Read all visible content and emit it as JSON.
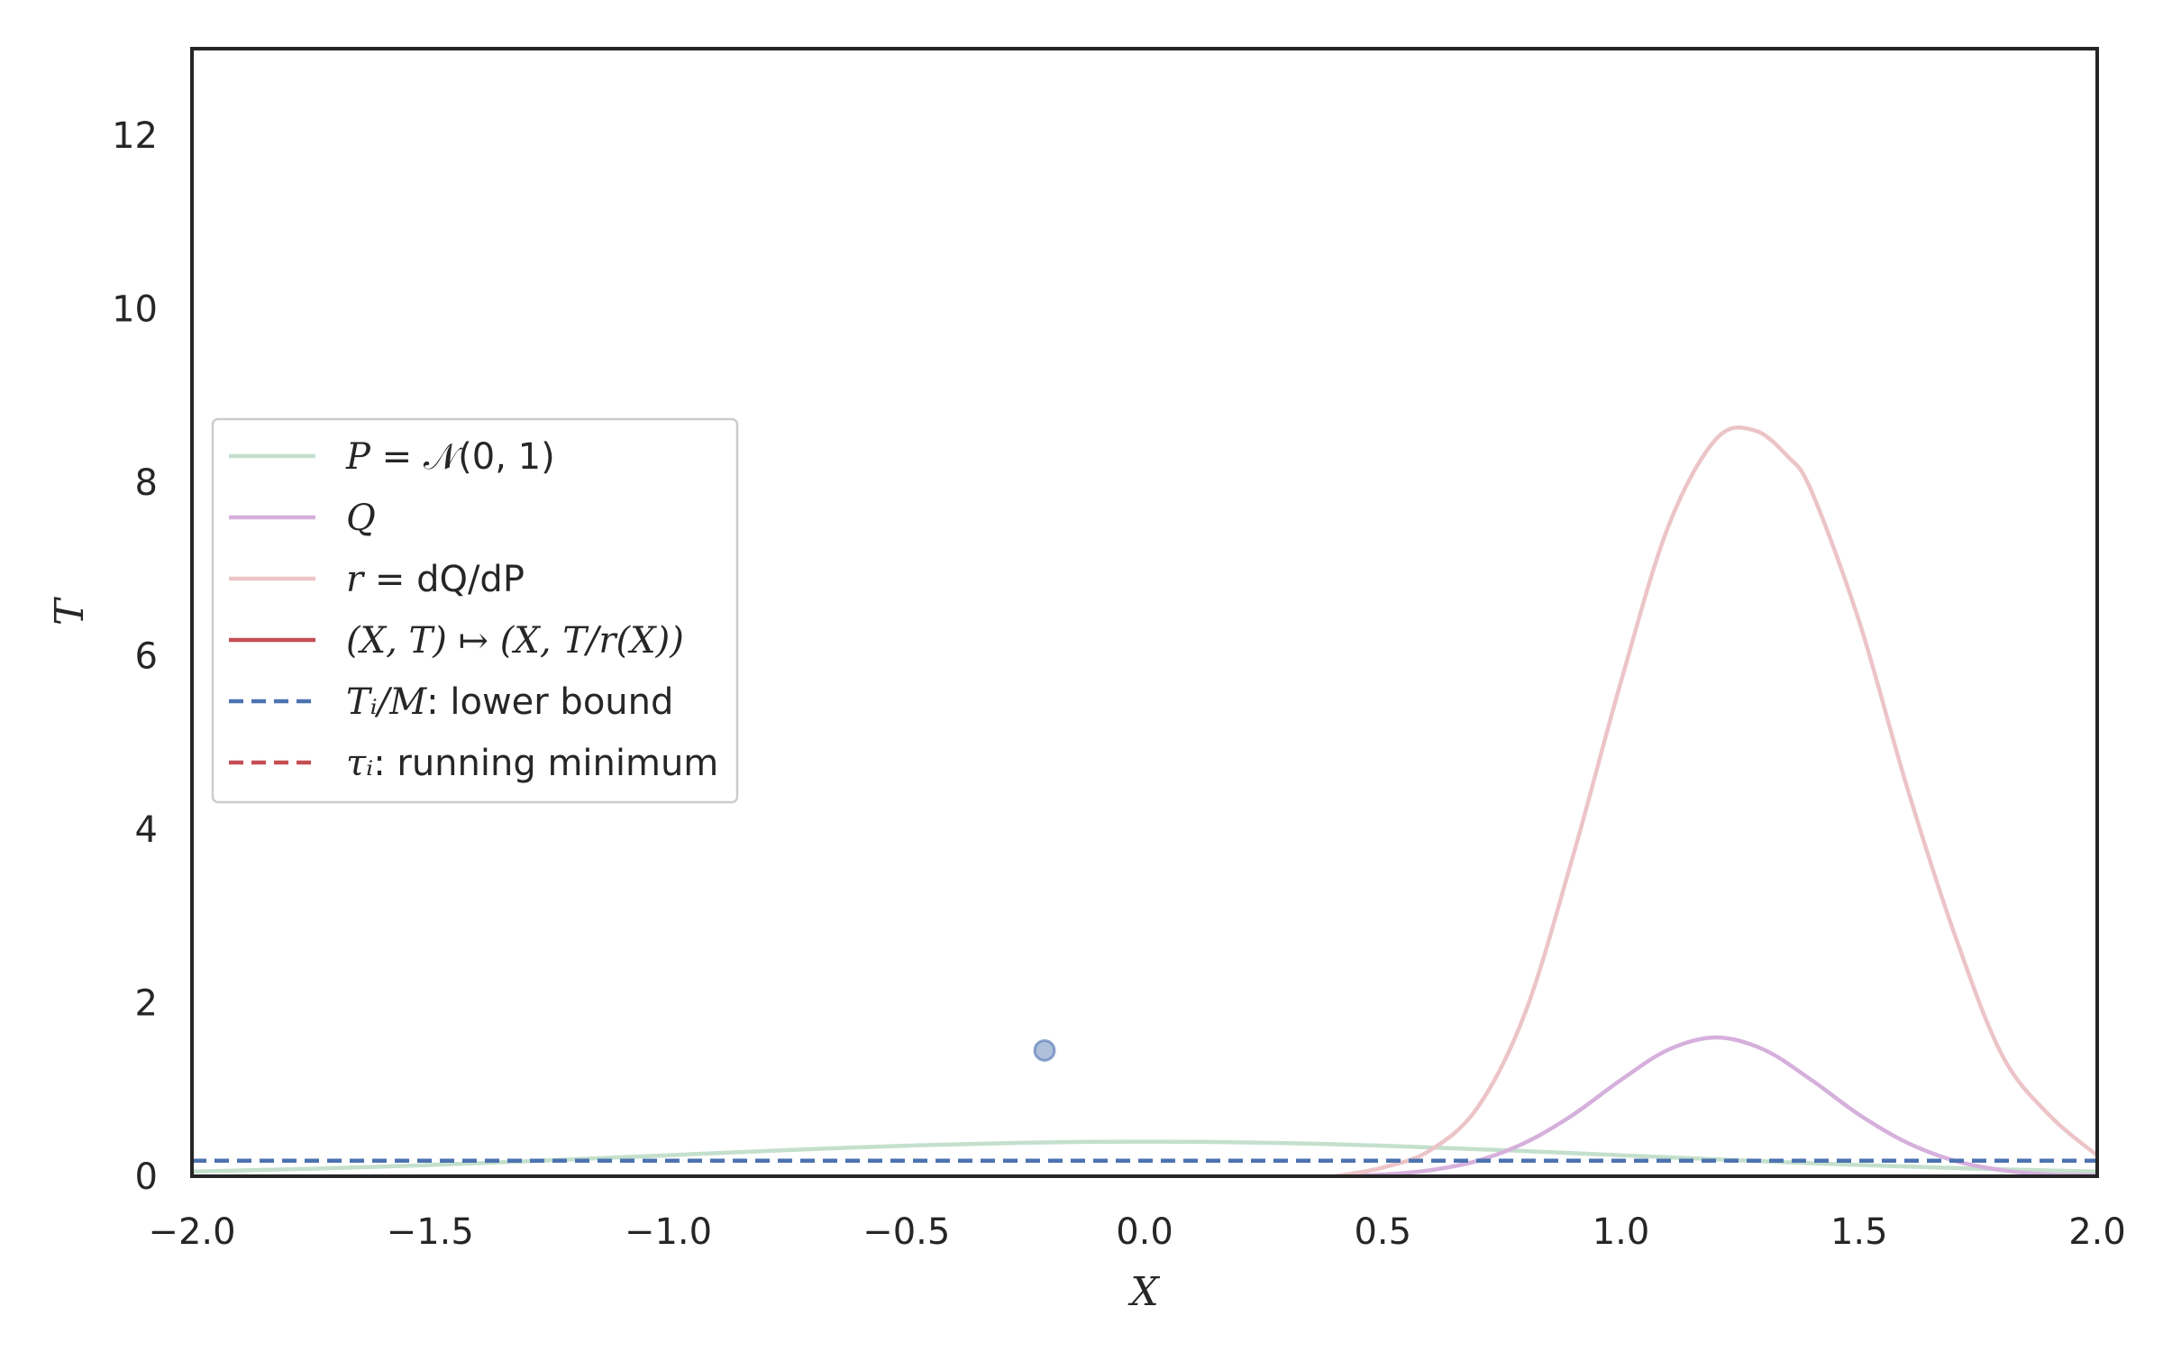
{
  "chart_data": {
    "type": "line",
    "xlabel": "X",
    "ylabel": "T",
    "xlim": [
      -2.0,
      2.0
    ],
    "ylim": [
      0,
      13
    ],
    "x_ticks": [
      -2.0,
      -1.5,
      -1.0,
      -0.5,
      0.0,
      0.5,
      1.0,
      1.5,
      2.0
    ],
    "x_tick_labels": [
      "−2.0",
      "−1.5",
      "−1.0",
      "−0.5",
      "0.0",
      "0.5",
      "1.0",
      "1.5",
      "2.0"
    ],
    "y_ticks": [
      0,
      2,
      4,
      6,
      8,
      10,
      12
    ],
    "y_tick_labels": [
      "0",
      "2",
      "4",
      "6",
      "8",
      "10",
      "12"
    ],
    "grid": false,
    "legend_position": "center-left",
    "series": [
      {
        "name": "P = 𝒩(0, 1)",
        "style": "solid",
        "color": "#c4e0cc",
        "x": [
          -2.0,
          -1.75,
          -1.5,
          -1.25,
          -1.0,
          -0.75,
          -0.5,
          -0.25,
          0.0,
          0.25,
          0.5,
          0.75,
          1.0,
          1.25,
          1.5,
          1.75,
          2.0
        ],
        "y": [
          0.054,
          0.086,
          0.13,
          0.183,
          0.242,
          0.301,
          0.352,
          0.387,
          0.399,
          0.387,
          0.352,
          0.301,
          0.242,
          0.183,
          0.13,
          0.086,
          0.054
        ]
      },
      {
        "name": "Q",
        "style": "solid",
        "color": "#d6b0dc",
        "x": [
          0.4,
          0.5,
          0.6,
          0.7,
          0.8,
          0.9,
          1.0,
          1.1,
          1.2,
          1.3,
          1.4,
          1.5,
          1.6,
          1.7,
          1.8,
          1.9,
          2.0
        ],
        "y": [
          0.0,
          0.02,
          0.07,
          0.18,
          0.39,
          0.71,
          1.11,
          1.46,
          1.6,
          1.46,
          1.11,
          0.71,
          0.39,
          0.18,
          0.07,
          0.02,
          0.01
        ]
      },
      {
        "name": "r = dQ/dP",
        "style": "solid",
        "color": "#ecc4c8",
        "x": [
          0.4,
          0.5,
          0.6,
          0.7,
          0.8,
          0.9,
          1.0,
          1.1,
          1.2,
          1.28,
          1.35,
          1.4,
          1.5,
          1.6,
          1.7,
          1.8,
          1.9,
          2.0
        ],
        "y": [
          0.0,
          0.1,
          0.3,
          0.8,
          1.9,
          3.7,
          5.7,
          7.5,
          8.5,
          8.6,
          8.3,
          7.9,
          6.4,
          4.5,
          2.8,
          1.4,
          0.7,
          0.24
        ]
      },
      {
        "name": "(X, T) ↦ (X, T/r(X))",
        "style": "solid",
        "color": "#c44e52",
        "x": [],
        "y": []
      },
      {
        "name": "Tᵢ/M: lower bound",
        "style": "dashed",
        "color": "#4c72b0",
        "x": [
          -2.0,
          2.0
        ],
        "y": [
          0.18,
          0.18
        ]
      },
      {
        "name": "τᵢ: running minimum",
        "style": "dashed",
        "color": "#c44e52",
        "x": [],
        "y": []
      }
    ],
    "points": [
      {
        "x": -0.21,
        "y": 1.45,
        "color": "#4c72b0"
      }
    ]
  },
  "legend": {
    "items": [
      {
        "math": "P",
        "text": " = 𝒩(0, 1)"
      },
      {
        "math": "Q",
        "text": ""
      },
      {
        "math": "r",
        "text": " = dQ/dP"
      },
      {
        "math": "(X, T) ↦ (X, T/r(X))",
        "text": ""
      },
      {
        "math": "Tᵢ/M",
        "text": ": lower bound"
      },
      {
        "math": "τᵢ",
        "text": ": running minimum"
      }
    ]
  }
}
